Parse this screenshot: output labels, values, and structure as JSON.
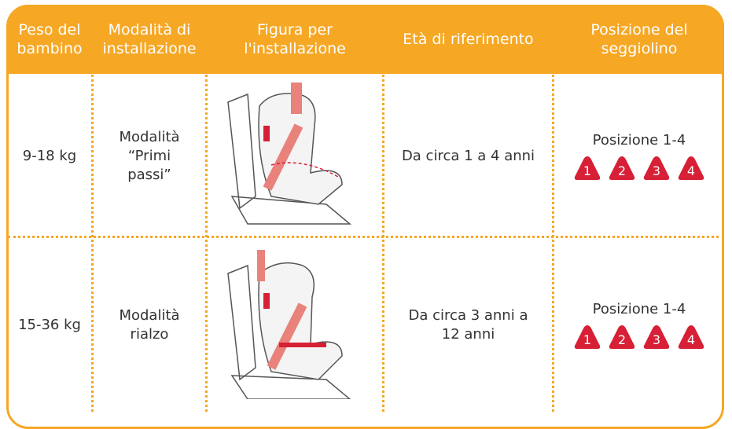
{
  "header": [
    "Peso del bambino",
    "Modalità di installazione",
    "Figura per l'installazione",
    "Età di riferimento",
    "Posizione del seggiolino"
  ],
  "rows": [
    {
      "weight": "9-18 kg",
      "mode": "Modalità “Primi passi”",
      "age": "Da circa 1 a 4 anni",
      "position": "Posizione 1-4",
      "badges": [
        "1",
        "2",
        "3",
        "4"
      ]
    },
    {
      "weight": "15-36 kg",
      "mode": "Modalità rialzo",
      "age": "Da circa 3 anni a 12 anni",
      "position": "Posizione 1-4",
      "badges": [
        "1",
        "2",
        "3",
        "4"
      ]
    }
  ]
}
